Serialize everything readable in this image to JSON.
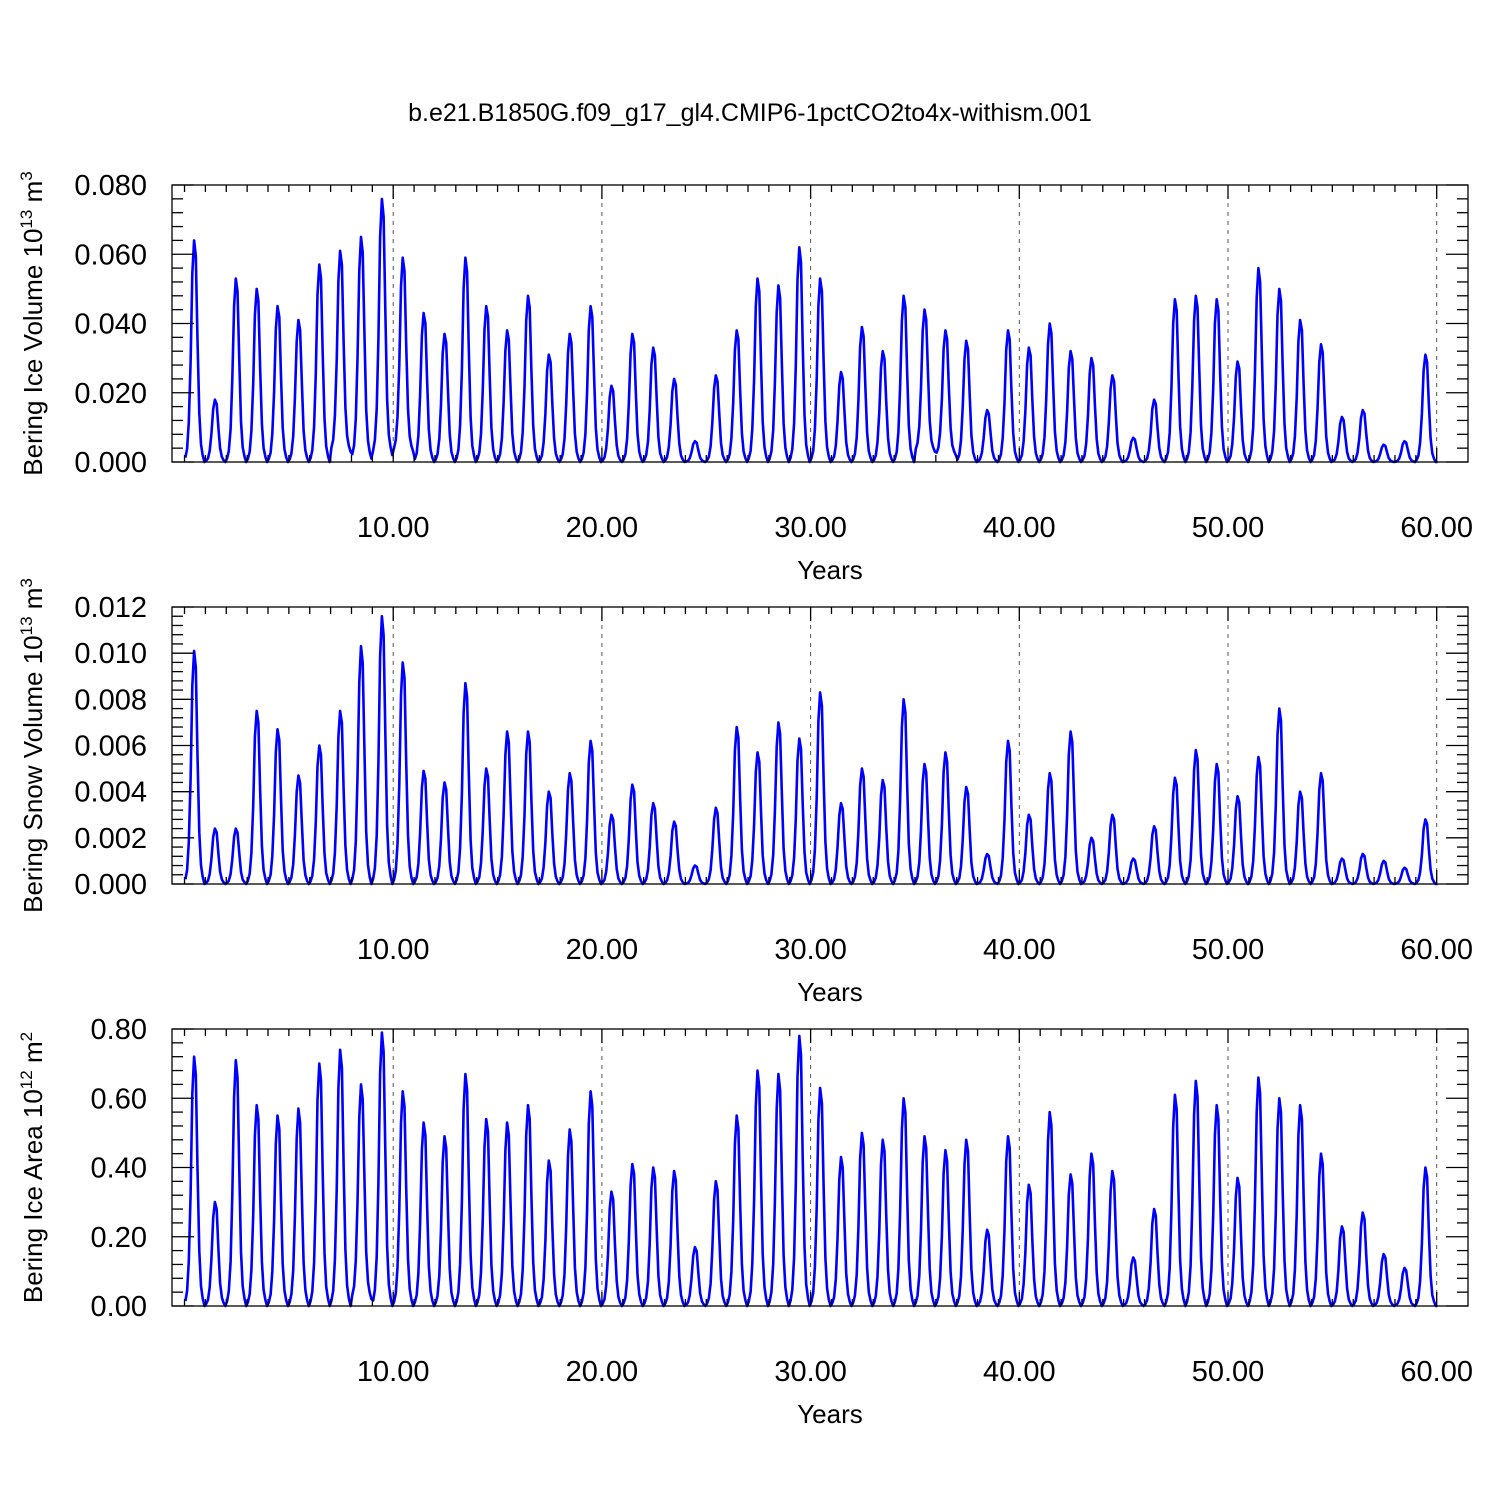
{
  "figure": {
    "title": "b.e21.B1850G.f09_g17_gl4.CMIP6-1pctCO2to4x-withism.001"
  },
  "colors": {
    "line": "#0000ff",
    "axes": "#000000"
  },
  "chart_data": [
    {
      "type": "line",
      "xlabel": "Years",
      "ylabel": {
        "text": "Bering Ice Volume 10",
        "sup": "13",
        "unit": " m",
        "unitsup": "3"
      },
      "xlim": [
        -0.6,
        61.5
      ],
      "ylim": [
        0,
        0.08
      ],
      "xticks": [
        10,
        20,
        30,
        40,
        50,
        60
      ],
      "xtick_labels": [
        "10.00",
        "20.00",
        "30.00",
        "40.00",
        "50.00",
        "60.00"
      ],
      "yticks": [
        0,
        0.02,
        0.04,
        0.06,
        0.08
      ],
      "ytick_labels": [
        "0.000",
        "0.020",
        "0.040",
        "0.060",
        "0.080"
      ],
      "grid": "vertical-dashed",
      "annual_peaks": [
        0.064,
        0.018,
        0.053,
        0.05,
        0.045,
        0.041,
        0.057,
        0.061,
        0.065,
        0.076,
        0.059,
        0.043,
        0.037,
        0.059,
        0.045,
        0.038,
        0.048,
        0.031,
        0.037,
        0.045,
        0.022,
        0.037,
        0.033,
        0.024,
        0.006,
        0.025,
        0.038,
        0.053,
        0.051,
        0.062,
        0.053,
        0.026,
        0.039,
        0.032,
        0.048,
        0.044,
        0.038,
        0.035,
        0.015,
        0.038,
        0.033,
        0.04,
        0.032,
        0.03,
        0.025,
        0.007,
        0.018,
        0.047,
        0.048,
        0.047,
        0.029,
        0.056,
        0.05,
        0.041,
        0.034,
        0.013,
        0.015,
        0.005,
        0.006,
        0.031
      ],
      "annual_minima": [
        0.0,
        0.0,
        0.0,
        0.0,
        0.0,
        0.0,
        0.0,
        0.003,
        0.001,
        0.002,
        0.003,
        0.0,
        0.0,
        0.0,
        0.0,
        0.0,
        0.0,
        0.0,
        0.0,
        0.0,
        0.0,
        0.0,
        0.0,
        0.0,
        0.0,
        0.0,
        0.0,
        0.0,
        0.0,
        0.0,
        0.0,
        0.0,
        0.0,
        0.0,
        0.0,
        0.003,
        0.002,
        0.0,
        0.0,
        0.0,
        0.0,
        0.0,
        0.0,
        0.0,
        0.0,
        0.0,
        0.0,
        0.0,
        0.0,
        0.0,
        0.0,
        0.0,
        0.0,
        0.0,
        0.0,
        0.0,
        0.0,
        0.0,
        0.0,
        0.0
      ]
    },
    {
      "type": "line",
      "xlabel": "Years",
      "ylabel": {
        "text": "Bering Snow Volume 10",
        "sup": "13",
        "unit": " m",
        "unitsup": "3"
      },
      "xlim": [
        -0.6,
        61.5
      ],
      "ylim": [
        0,
        0.012
      ],
      "xticks": [
        10,
        20,
        30,
        40,
        50,
        60
      ],
      "xtick_labels": [
        "10.00",
        "20.00",
        "30.00",
        "40.00",
        "50.00",
        "60.00"
      ],
      "yticks": [
        0,
        0.002,
        0.004,
        0.006,
        0.008,
        0.01,
        0.012
      ],
      "ytick_labels": [
        "0.000",
        "0.002",
        "0.004",
        "0.006",
        "0.008",
        "0.010",
        "0.012"
      ],
      "grid": "vertical-dashed",
      "annual_peaks": [
        0.0101,
        0.0024,
        0.0024,
        0.0075,
        0.0067,
        0.0047,
        0.006,
        0.0075,
        0.0103,
        0.0116,
        0.0096,
        0.0049,
        0.0044,
        0.0087,
        0.005,
        0.0066,
        0.0066,
        0.004,
        0.0048,
        0.0062,
        0.003,
        0.0043,
        0.0035,
        0.0027,
        0.0008,
        0.0033,
        0.0068,
        0.0057,
        0.007,
        0.0063,
        0.0083,
        0.0035,
        0.005,
        0.0045,
        0.008,
        0.0052,
        0.0057,
        0.0042,
        0.0013,
        0.0062,
        0.003,
        0.0048,
        0.0066,
        0.002,
        0.003,
        0.0011,
        0.0025,
        0.0046,
        0.0058,
        0.0052,
        0.0038,
        0.0055,
        0.0076,
        0.004,
        0.0048,
        0.0011,
        0.0013,
        0.001,
        0.0007,
        0.0028
      ],
      "annual_minima": [
        0.0,
        0.0,
        0.0,
        0.0,
        0.0,
        0.0,
        0.0,
        0.0,
        0.0,
        0.0,
        0.0,
        0.0,
        0.0,
        0.0,
        0.0,
        0.0,
        0.0,
        0.0,
        0.0,
        0.0,
        0.0,
        0.0,
        0.0,
        0.0,
        0.0,
        0.0,
        0.0,
        0.0,
        0.0,
        0.0,
        0.0,
        0.0,
        0.0,
        0.0,
        0.0,
        0.0,
        0.0,
        0.0,
        0.0,
        0.0,
        0.0,
        0.0,
        0.0,
        0.0,
        0.0,
        0.0,
        0.0,
        0.0,
        0.0,
        0.0,
        0.0,
        0.0,
        0.0,
        0.0,
        0.0,
        0.0,
        0.0,
        0.0,
        0.0,
        0.0
      ]
    },
    {
      "type": "line",
      "xlabel": "Years",
      "ylabel": {
        "text": "Bering Ice Area 10",
        "sup": "12",
        "unit": " m",
        "unitsup": "2"
      },
      "xlim": [
        -0.6,
        61.5
      ],
      "ylim": [
        0,
        0.8
      ],
      "xticks": [
        10,
        20,
        30,
        40,
        50,
        60
      ],
      "xtick_labels": [
        "10.00",
        "20.00",
        "30.00",
        "40.00",
        "50.00",
        "60.00"
      ],
      "yticks": [
        0,
        0.2,
        0.4,
        0.6,
        0.8
      ],
      "ytick_labels": [
        "0.00",
        "0.20",
        "0.40",
        "0.60",
        "0.80"
      ],
      "grid": "vertical-dashed",
      "annual_peaks": [
        0.72,
        0.3,
        0.71,
        0.58,
        0.55,
        0.57,
        0.7,
        0.74,
        0.64,
        0.79,
        0.62,
        0.53,
        0.49,
        0.67,
        0.54,
        0.53,
        0.58,
        0.42,
        0.51,
        0.62,
        0.33,
        0.41,
        0.4,
        0.39,
        0.17,
        0.36,
        0.55,
        0.68,
        0.67,
        0.78,
        0.63,
        0.43,
        0.5,
        0.48,
        0.6,
        0.49,
        0.45,
        0.48,
        0.22,
        0.49,
        0.35,
        0.56,
        0.38,
        0.44,
        0.39,
        0.14,
        0.28,
        0.61,
        0.65,
        0.58,
        0.37,
        0.66,
        0.6,
        0.58,
        0.44,
        0.23,
        0.27,
        0.15,
        0.11,
        0.4
      ],
      "annual_minima": [
        0.0,
        0.0,
        0.0,
        0.0,
        0.0,
        0.0,
        0.0,
        0.0,
        0.02,
        0.0,
        0.0,
        0.0,
        0.0,
        0.0,
        0.0,
        0.0,
        0.0,
        0.0,
        0.0,
        0.0,
        0.0,
        0.0,
        0.0,
        0.0,
        0.0,
        0.0,
        0.0,
        0.0,
        0.0,
        0.0,
        0.0,
        0.0,
        0.0,
        0.0,
        0.0,
        0.0,
        0.0,
        0.0,
        0.0,
        0.0,
        0.0,
        0.0,
        0.0,
        0.0,
        0.0,
        0.0,
        0.0,
        0.0,
        0.0,
        0.0,
        0.0,
        0.0,
        0.0,
        0.0,
        0.0,
        0.0,
        0.0,
        0.0,
        0.0,
        0.0
      ]
    }
  ]
}
